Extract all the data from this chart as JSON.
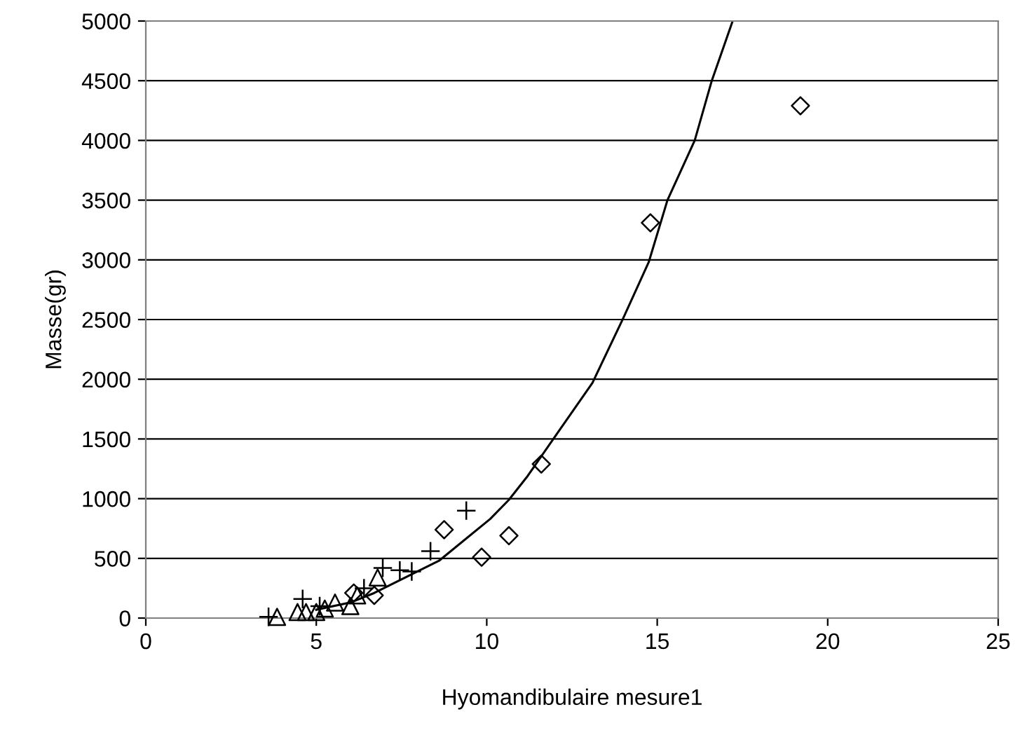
{
  "chart_data": {
    "type": "scatter",
    "xlabel": "Hyomandibulaire mesure1",
    "ylabel": "Masse(gr)",
    "xlim": [
      0,
      25
    ],
    "xticks": [
      0,
      5,
      10,
      15,
      20,
      25
    ],
    "ylim": [
      0,
      5000
    ],
    "yticks": [
      0,
      500,
      1000,
      1500,
      2000,
      2500,
      3000,
      3500,
      4000,
      4500,
      5000
    ],
    "grid": "y",
    "legend": false,
    "series": [
      {
        "marker": "diamond",
        "color": "#000000",
        "x": [
          19.2,
          14.8,
          11.6,
          10.65,
          9.85,
          8.75,
          6.7,
          6.1
        ],
        "values": [
          4290,
          3310,
          1290,
          690,
          510,
          740,
          190,
          210
        ]
      },
      {
        "marker": "cross",
        "color": "#000000",
        "x": [
          3.6,
          4.6,
          5.1,
          6.4,
          6.95,
          7.45,
          7.8,
          8.35,
          9.4
        ],
        "values": [
          10,
          160,
          100,
          250,
          420,
          400,
          390,
          560,
          900
        ]
      },
      {
        "marker": "triangle",
        "color": "#000000",
        "x": [
          3.85,
          4.45,
          4.7,
          5.0,
          5.25,
          5.55,
          6.0,
          6.2,
          6.8
        ],
        "values": [
          10,
          50,
          50,
          50,
          80,
          130,
          100,
          190,
          340
        ]
      },
      {
        "type": "line",
        "marker": "none",
        "color": "#000000",
        "x": [
          5.0,
          6.0,
          6.7,
          8.6,
          10.1,
          10.65,
          11.2,
          12.05,
          13.1,
          14.0,
          14.75,
          15.3,
          16.1,
          16.6,
          17.2
        ],
        "values": [
          70,
          130,
          210,
          480,
          830,
          990,
          1190,
          1540,
          1970,
          2510,
          2980,
          3500,
          4000,
          4500,
          4990
        ]
      }
    ]
  }
}
